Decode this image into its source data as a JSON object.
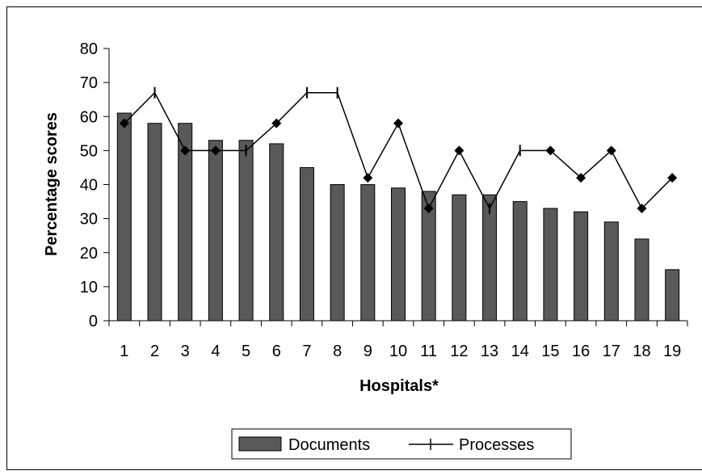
{
  "chart_data": {
    "type": "bar",
    "categories": [
      "1",
      "2",
      "3",
      "4",
      "5",
      "6",
      "7",
      "8",
      "9",
      "10",
      "11",
      "12",
      "13",
      "14",
      "15",
      "16",
      "17",
      "18",
      "19"
    ],
    "series": [
      {
        "name": "Documents",
        "type": "bar",
        "color": "#595959",
        "values": [
          61,
          58,
          58,
          53,
          53,
          52,
          45,
          40,
          40,
          39,
          38,
          37,
          37,
          35,
          33,
          32,
          29,
          24,
          15
        ]
      },
      {
        "name": "Processes",
        "type": "line",
        "color": "#000000",
        "values": [
          58,
          67,
          50,
          50,
          50,
          58,
          67,
          67,
          42,
          58,
          33,
          50,
          33,
          50,
          50,
          42,
          50,
          33,
          42
        ],
        "markers": [
          "diamond",
          "dash",
          "diamond",
          "diamond",
          "dash",
          "diamond",
          "dash",
          "dash",
          "diamond",
          "diamond",
          "diamond",
          "diamond",
          "dash",
          "dash",
          "diamond",
          "diamond",
          "diamond",
          "diamond",
          "diamond"
        ]
      }
    ],
    "xlabel": "Hospitals*",
    "ylabel": "Percentage scores",
    "ylim": [
      0,
      80
    ],
    "yticks": [
      0,
      10,
      20,
      30,
      40,
      50,
      60,
      70,
      80
    ],
    "grid": false,
    "legend": "bottom"
  }
}
